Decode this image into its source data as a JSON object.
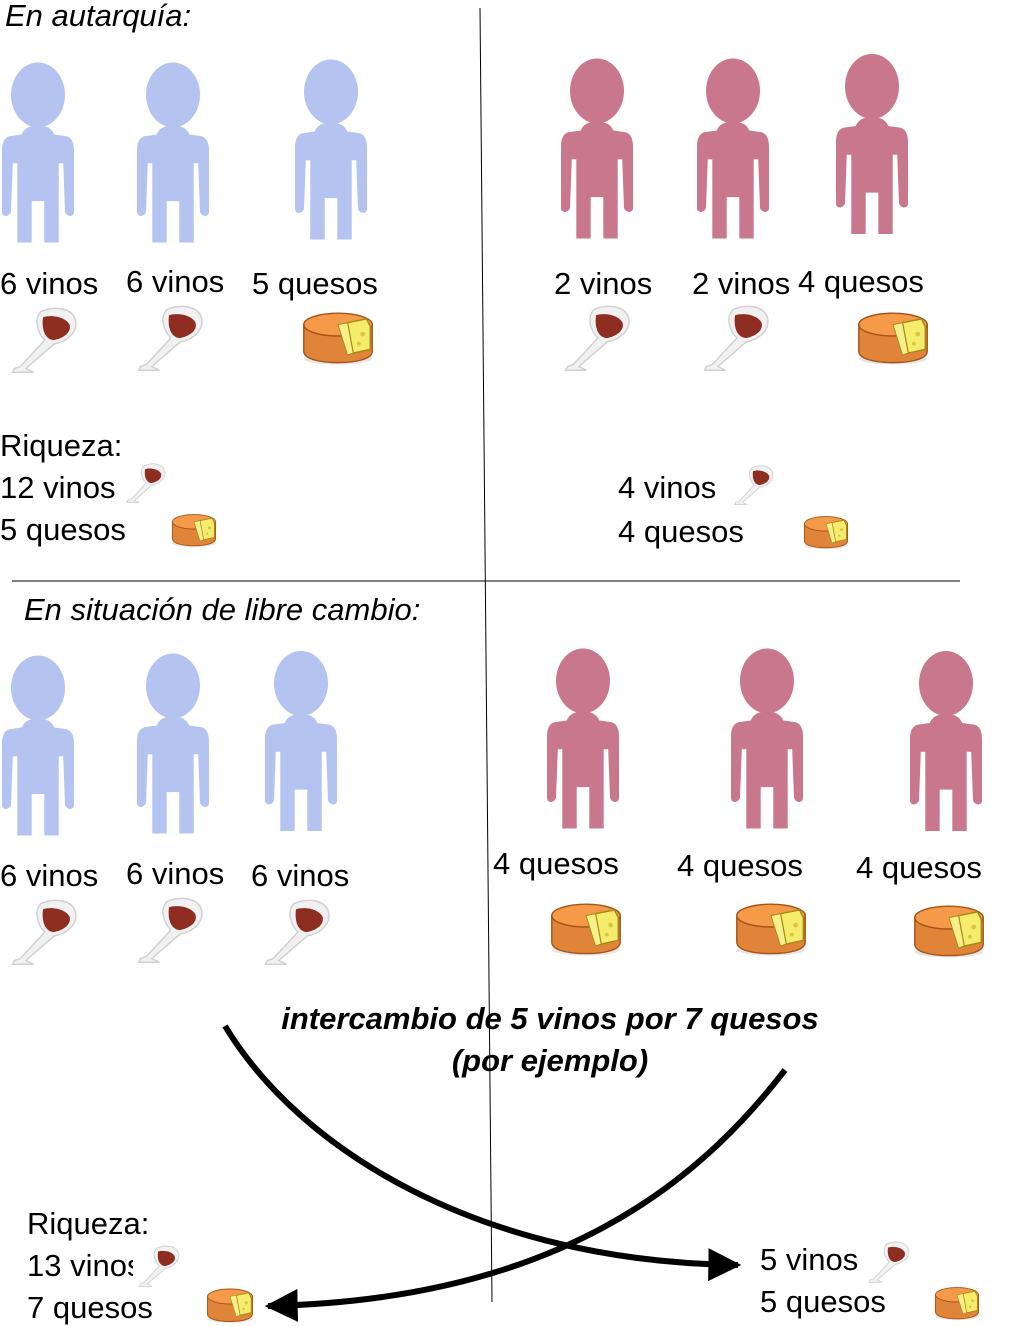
{
  "autarky": {
    "title": "En autarquía:",
    "country_a": {
      "people": [
        {
          "label": "6 vinos",
          "good": "wine"
        },
        {
          "label": "6 vinos",
          "good": "wine"
        },
        {
          "label": "5 quesos",
          "good": "cheese"
        }
      ],
      "wealth": {
        "title": "Riqueza:",
        "wine": "12 vinos",
        "cheese": "5 quesos"
      }
    },
    "country_b": {
      "people": [
        {
          "label": "2 vinos",
          "good": "wine"
        },
        {
          "label": "2 vinos",
          "good": "wine"
        },
        {
          "label": "4 quesos",
          "good": "cheese"
        }
      ],
      "wealth": {
        "wine": "4 vinos",
        "cheese": "4 quesos"
      }
    }
  },
  "free_trade": {
    "title": "En situación de libre cambio:",
    "country_a": {
      "people": [
        {
          "label": "6 vinos",
          "good": "wine"
        },
        {
          "label": "6 vinos",
          "good": "wine"
        },
        {
          "label": "6 vinos",
          "good": "wine"
        }
      ],
      "wealth": {
        "title": "Riqueza:",
        "wine": "13 vinos",
        "cheese": "7 quesos"
      }
    },
    "country_b": {
      "people": [
        {
          "label": "4 quesos",
          "good": "cheese"
        },
        {
          "label": "4 quesos",
          "good": "cheese"
        },
        {
          "label": "4 quesos",
          "good": "cheese"
        }
      ],
      "wealth": {
        "wine": "5 vinos",
        "cheese": "5 quesos"
      }
    },
    "exchange_note": {
      "line1": "intercambio de 5 vinos por 7 quesos",
      "line2": "(por ejemplo)"
    }
  },
  "colors": {
    "country_a": "#b4c3ef",
    "country_b": "#c9778c",
    "wine": "#8e2d22",
    "cheese": "#e0843a",
    "cheese_cut": "#f4ec6a"
  },
  "icons": {
    "person": "person-silhouette-icon",
    "wine": "wine-glass-icon",
    "cheese": "cheese-wheel-icon"
  }
}
